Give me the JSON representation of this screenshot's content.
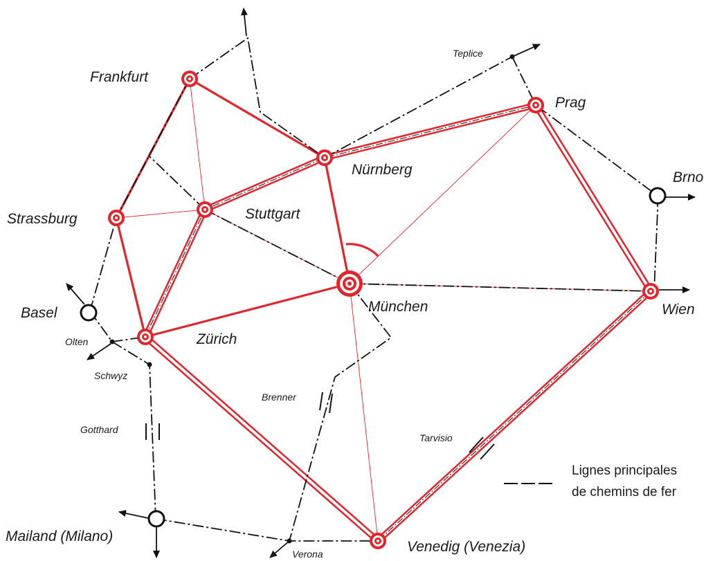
{
  "cities": {
    "frankfurt": "Frankfurt",
    "strassburg": "Strassburg",
    "stuttgart": "Stuttgart",
    "nurnberg": "Nürnberg",
    "prag": "Prag",
    "brno": "Brno",
    "wien": "Wien",
    "munchen": "München",
    "zurich": "Zürich",
    "basel": "Basel",
    "mailand": "Mailand (Milano)",
    "venedig": "Venedig (Venezia)"
  },
  "places": {
    "teplice": "Teplice",
    "olten": "Olten",
    "schwyz": "Schwyz",
    "gotthard": "Gotthard",
    "brenner": "Brenner",
    "tarvisio": "Tarvisio",
    "verona": "Verona"
  },
  "legend": {
    "line1": "Lignes principales",
    "line2": "de chemins de fer"
  },
  "colors": {
    "network": "#e3242b",
    "rail": "#111111"
  }
}
